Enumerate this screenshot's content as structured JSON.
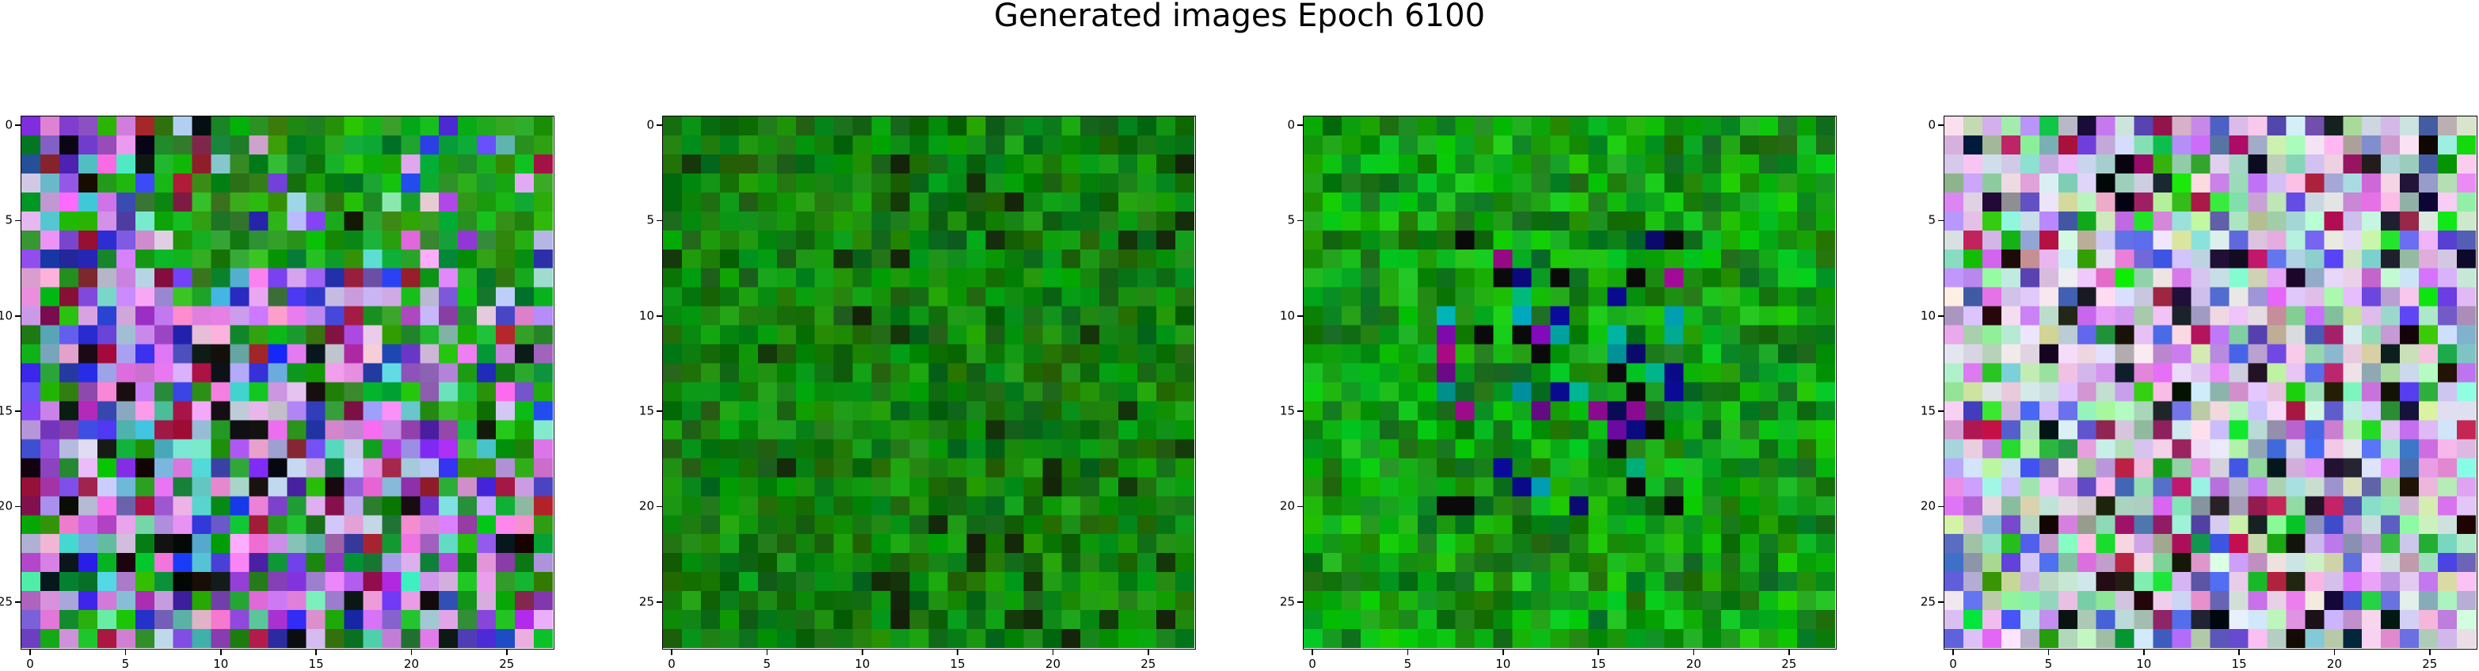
{
  "figure": {
    "title": "Generated images Epoch 6100",
    "panels": [
      {
        "id": "p1",
        "style": "mixed",
        "seed": 11
      },
      {
        "id": "p2",
        "style": "green",
        "seed": 23
      },
      {
        "id": "p3",
        "style": "green-dark",
        "seed": 37
      },
      {
        "id": "p4",
        "style": "pastel",
        "seed": 51
      }
    ],
    "axis": {
      "x_ticks": [
        "0",
        "5",
        "10",
        "15",
        "20",
        "25"
      ],
      "y_ticks": [
        "0",
        "5",
        "10",
        "15",
        "20",
        "25"
      ],
      "tick_values": [
        0,
        5,
        10,
        15,
        20,
        25
      ],
      "pixel_grid": 28
    },
    "palette": {
      "green_base": "#1a8a1a",
      "frame": "#000000"
    }
  }
}
